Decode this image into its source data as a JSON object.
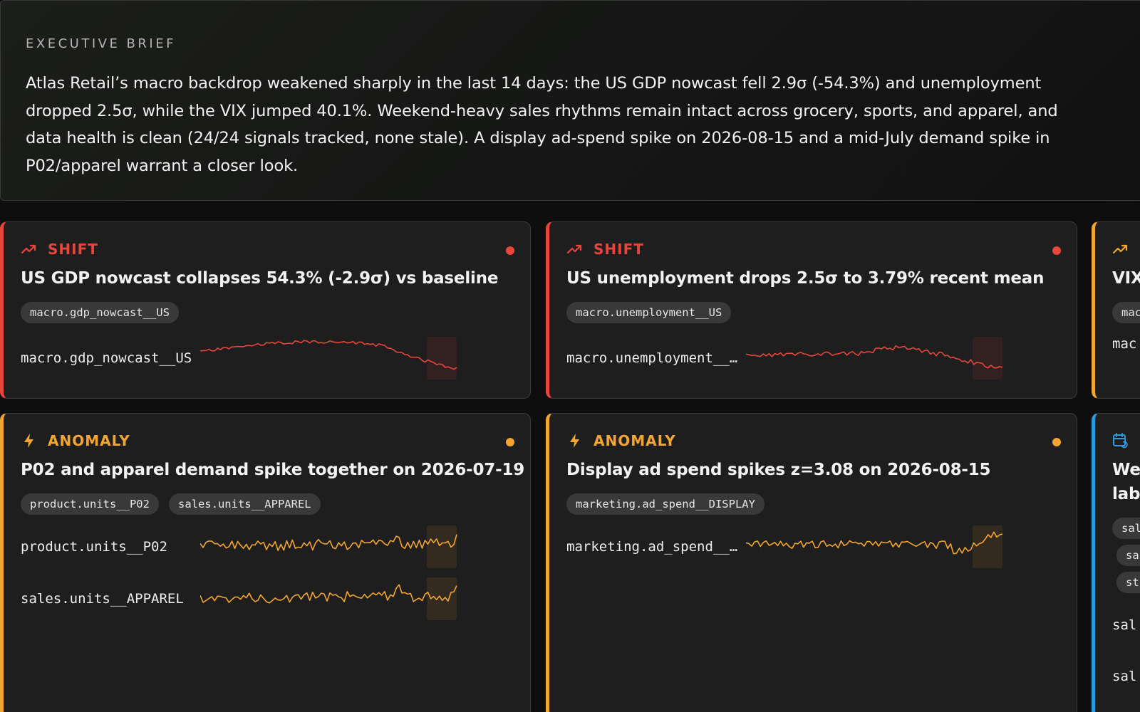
{
  "brief": {
    "label": "EXECUTIVE BRIEF",
    "text": "Atlas Retail’s macro backdrop weakened sharply in the last 14 days: the US GDP nowcast fell 2.9σ (-54.3%) and unemployment dropped 2.5σ, while the VIX jumped 40.1%. Weekend-heavy sales rhythms remain intact across grocery, sports, and apparel, and data health is clean (24/24 signals tracked, none stale). A display ad-spend spike on 2026-08-15 and a mid-July demand spike in P02/apparel warrant a closer look."
  },
  "colors": {
    "shift": "#e8453c",
    "anomaly": "#f2a530",
    "seasonal": "#2b9ae0",
    "card_bg": "#1e1e1e",
    "page_bg": "#0e0e0e"
  },
  "cards": [
    {
      "kind": "SHIFT",
      "icon": "trending-up-icon",
      "title": "US GDP nowcast collapses 54.3% (-2.9σ) vs baseline",
      "chips": [
        "macro.gdp_nowcast__US"
      ],
      "series": [
        {
          "label": "macro.gdp_nowcast__US",
          "shape": "gdp"
        }
      ]
    },
    {
      "kind": "SHIFT",
      "icon": "trending-up-icon",
      "title": "US unemployment drops 2.5σ to 3.79% recent mean",
      "chips": [
        "macro.unemployment__US"
      ],
      "series": [
        {
          "label": "macro.unemployment__US",
          "shape": "unemp"
        }
      ]
    },
    {
      "kind": "SHIFT",
      "icon": "trending-up-icon",
      "title": "VIX",
      "chips": [
        "mac"
      ],
      "series": [
        {
          "label": "mac"
        }
      ]
    },
    {
      "kind": "ANOMALY",
      "icon": "lightning-icon",
      "title": "P02 and apparel demand spike together on 2026-07-19",
      "chips": [
        "product.units__P02",
        "sales.units__APPAREL"
      ],
      "series": [
        {
          "label": "product.units__P02",
          "shape": "p02"
        },
        {
          "label": "sales.units__APPAREL",
          "shape": "apparel"
        }
      ]
    },
    {
      "kind": "ANOMALY",
      "icon": "lightning-icon",
      "title": "Display ad spend spikes z=3.08 on 2026-08-15",
      "chips": [
        "marketing.ad_spend__DISPLAY"
      ],
      "series": [
        {
          "label": "marketing.ad_spend__DISPLAY",
          "shape": "display"
        }
      ]
    },
    {
      "kind": "SEASONAL",
      "icon": "calendar-refresh-icon",
      "title_lines": [
        "We",
        "lab"
      ],
      "chips": [
        "sal",
        "sa",
        "st"
      ],
      "series": [
        {
          "label": "sal"
        },
        {
          "label": "sal"
        }
      ]
    }
  ]
}
